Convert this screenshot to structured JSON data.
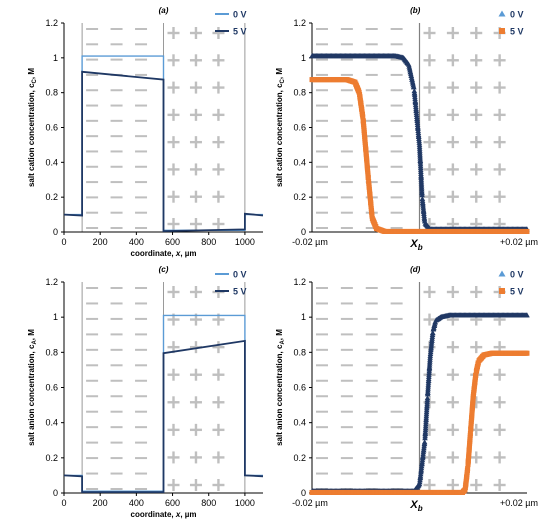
{
  "colors": {
    "zero_v_ab": "#5B9BD5",
    "five_v_ab": "#1F3864",
    "zero_v_cd": "#203864",
    "five_v_cd": "#ED7D31",
    "plus_marks": "#BFBFBF",
    "minus_marks": "#BFBFBF",
    "boundary_line": "#808080",
    "axis": "#000000"
  },
  "symbols": {
    "positive_region": "+",
    "negative_region": "−"
  },
  "chart_data": [
    {
      "id": "a",
      "type": "line",
      "title": "(a)",
      "xlabel": "coordinate, x, µm",
      "ylabel": "salt cation concentration, c",
      "ylabel_sub": "C",
      "ylabel_unit": ", M",
      "xlim": [
        0,
        1100
      ],
      "ylim": [
        0,
        1.2
      ],
      "xticks": [
        0,
        200,
        400,
        600,
        800,
        1000
      ],
      "yticks": [
        0,
        0.2,
        0.4,
        0.6,
        0.8,
        1,
        1.2
      ],
      "xtick_labels": [
        "0",
        "200",
        "400",
        "600",
        "800",
        "1000"
      ],
      "ytick_labels": [
        "0",
        "0.2",
        "0.4",
        "0.6",
        "0.8",
        "1",
        "1.2"
      ],
      "grid": false,
      "legend_position": "top-right",
      "regions": {
        "minus": [
          100,
          550
        ],
        "plus": [
          550,
          1000
        ]
      },
      "series": [
        {
          "name": "0 V",
          "style": "line",
          "x": [
            0,
            100,
            100,
            550,
            550,
            1000,
            1000,
            1100
          ],
          "y": [
            0.1,
            0.1,
            1.01,
            1.01,
            0.01,
            0.01,
            0.1,
            0.1
          ]
        },
        {
          "name": "5 V",
          "style": "line",
          "x": [
            0,
            100,
            100,
            550,
            550,
            1000,
            1000,
            1100
          ],
          "y": [
            0.1,
            0.095,
            0.92,
            0.875,
            0.005,
            0.015,
            0.105,
            0.095
          ]
        }
      ]
    },
    {
      "id": "b",
      "type": "line",
      "title": "(b)",
      "xlabel": "",
      "ylabel": "salt cation concentration, c",
      "ylabel_sub": "C",
      "ylabel_unit": ", M",
      "xlim": [
        -0.02,
        0.02
      ],
      "ylim": [
        0,
        1.2
      ],
      "yticks": [
        0,
        0.2,
        0.4,
        0.6,
        0.8,
        1,
        1.2
      ],
      "ytick_labels": [
        "0",
        "0.2",
        "0.4",
        "0.6",
        "0.8",
        "1",
        "1.2"
      ],
      "xtick_labels": [
        "-0.02 µm",
        "+0.02 µm"
      ],
      "boundary_label": "X",
      "boundary_label_sub": "b",
      "grid": false,
      "legend_position": "top-right",
      "regions": {
        "minus": [
          -0.02,
          0
        ],
        "plus": [
          0,
          0.02
        ]
      },
      "series": [
        {
          "name": "0 V",
          "style": "markers",
          "marker": "triangle",
          "x": [
            -0.02,
            -0.0045,
            -0.003,
            -0.002,
            -0.001,
            0,
            0.0005,
            0.001,
            0.002,
            0.02
          ],
          "y": [
            1.01,
            1.01,
            1.0,
            0.96,
            0.82,
            0.5,
            0.2,
            0.05,
            0.015,
            0.015
          ]
        },
        {
          "name": "5 V",
          "style": "markers",
          "marker": "square",
          "x": [
            -0.02,
            -0.0135,
            -0.012,
            -0.0112,
            -0.0105,
            -0.0095,
            -0.0088,
            -0.008,
            -0.0065,
            0.02
          ],
          "y": [
            0.875,
            0.875,
            0.86,
            0.8,
            0.65,
            0.3,
            0.08,
            0.02,
            0.003,
            0.003
          ]
        }
      ]
    },
    {
      "id": "c",
      "type": "line",
      "title": "(c)",
      "xlabel": "coordinate, x, µm",
      "ylabel": "salt anion concentration, c",
      "ylabel_sub": "A",
      "ylabel_unit": ", M",
      "xlim": [
        0,
        1100
      ],
      "ylim": [
        0,
        1.2
      ],
      "xticks": [
        0,
        200,
        400,
        600,
        800,
        1000
      ],
      "yticks": [
        0,
        0.2,
        0.4,
        0.6,
        0.8,
        1,
        1.2
      ],
      "xtick_labels": [
        "0",
        "200",
        "400",
        "600",
        "800",
        "1000"
      ],
      "ytick_labels": [
        "0",
        "0.2",
        "0.4",
        "0.6",
        "0.8",
        "1",
        "1.2"
      ],
      "grid": false,
      "legend_position": "top-right",
      "regions": {
        "minus": [
          100,
          550
        ],
        "plus": [
          550,
          1000
        ]
      },
      "series": [
        {
          "name": "0 V",
          "style": "line",
          "x": [
            0,
            100,
            100,
            550,
            550,
            1000,
            1000,
            1100
          ],
          "y": [
            0.1,
            0.1,
            0.01,
            0.01,
            1.01,
            1.01,
            0.1,
            0.1
          ]
        },
        {
          "name": "5 V",
          "style": "line",
          "x": [
            0,
            100,
            100,
            550,
            550,
            1000,
            1000,
            1100
          ],
          "y": [
            0.1,
            0.095,
            0.005,
            0.005,
            0.795,
            0.865,
            0.1,
            0.095
          ]
        }
      ]
    },
    {
      "id": "d",
      "type": "line",
      "title": "(d)",
      "xlabel": "",
      "ylabel": "salt anion concentration, c",
      "ylabel_sub": "A",
      "ylabel_unit": ", M",
      "xlim": [
        -0.02,
        0.02
      ],
      "ylim": [
        0,
        1.2
      ],
      "yticks": [
        0,
        0.2,
        0.4,
        0.6,
        0.8,
        1,
        1.2
      ],
      "ytick_labels": [
        "0",
        "0.2",
        "0.4",
        "0.6",
        "0.8",
        "1",
        "1.2"
      ],
      "xtick_labels": [
        "-0.02 µm",
        "+0.02 µm"
      ],
      "boundary_label": "X",
      "boundary_label_sub": "b",
      "grid": false,
      "legend_position": "top-right",
      "regions": {
        "minus": [
          -0.02,
          0
        ],
        "plus": [
          0,
          0.02
        ]
      },
      "series": [
        {
          "name": "0 V",
          "style": "markers",
          "marker": "triangle",
          "x": [
            -0.02,
            -0.001,
            0,
            0.001,
            0.0015,
            0.002,
            0.0025,
            0.003,
            0.004,
            0.0055,
            0.02
          ],
          "y": [
            0.01,
            0.01,
            0.05,
            0.3,
            0.55,
            0.78,
            0.92,
            0.98,
            1.0,
            1.01,
            1.01
          ]
        },
        {
          "name": "5 V",
          "style": "markers",
          "marker": "square",
          "x": [
            -0.02,
            0.008,
            0.0085,
            0.009,
            0.0095,
            0.01,
            0.0105,
            0.011,
            0.012,
            0.0135,
            0.02
          ],
          "y": [
            0.003,
            0.003,
            0.02,
            0.15,
            0.35,
            0.55,
            0.68,
            0.75,
            0.785,
            0.795,
            0.795
          ]
        }
      ]
    }
  ]
}
